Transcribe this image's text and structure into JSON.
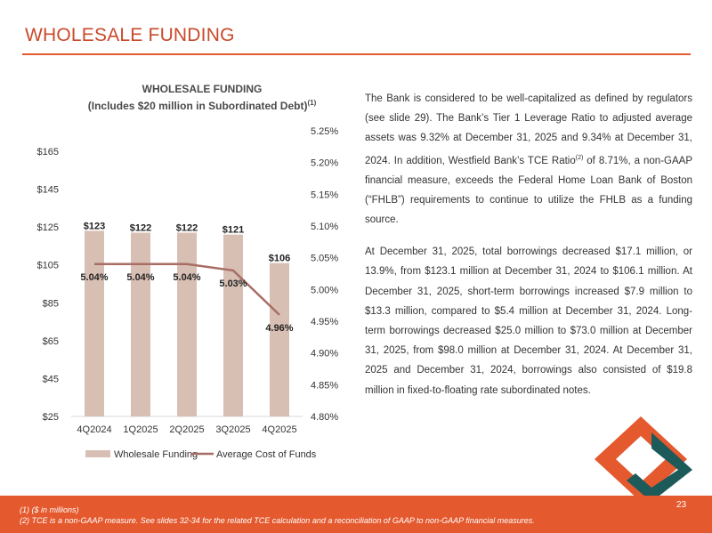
{
  "header": {
    "title": "WHOLESALE FUNDING"
  },
  "chart_data": {
    "type": "bar",
    "title": "WHOLESALE FUNDING",
    "subtitle": "(Includes $20 million in Subordinated Debt)",
    "subtitle_note": "(1)",
    "categories": [
      "4Q2024",
      "1Q2025",
      "2Q2025",
      "3Q2025",
      "4Q2025"
    ],
    "series": [
      {
        "name": "Wholesale Funding",
        "type": "bar",
        "axis": "left",
        "values": [
          123,
          122,
          122,
          121,
          106
        ],
        "labels": [
          "$123",
          "$122",
          "$122",
          "$121",
          "$106"
        ],
        "color": "#d8bfb4"
      },
      {
        "name": "Average Cost of Funds",
        "type": "line",
        "axis": "right",
        "values": [
          5.04,
          5.04,
          5.04,
          5.03,
          4.96
        ],
        "labels": [
          "5.04%",
          "5.04%",
          "5.04%",
          "5.03%",
          "4.96%"
        ],
        "color": "#a86e66"
      }
    ],
    "y_left": {
      "min": 25,
      "max": 165,
      "ticks": [
        "$25",
        "$45",
        "$65",
        "$85",
        "$105",
        "$125",
        "$145",
        "$165"
      ],
      "tick_values": [
        25,
        45,
        65,
        85,
        105,
        125,
        145,
        165
      ]
    },
    "y_right": {
      "min": 4.8,
      "max": 5.25,
      "ticks": [
        "4.80%",
        "4.85%",
        "4.90%",
        "4.95%",
        "5.00%",
        "5.05%",
        "5.10%",
        "5.15%",
        "5.20%",
        "5.25%"
      ],
      "tick_values": [
        4.8,
        4.85,
        4.9,
        4.95,
        5.0,
        5.05,
        5.1,
        5.15,
        5.2,
        5.25
      ]
    },
    "legend": {
      "position": "bottom",
      "items": [
        "Wholesale Funding",
        "Average Cost of Funds"
      ]
    },
    "grid": false
  },
  "body": {
    "para1_a": "The Bank is considered to be well-capitalized as defined by regulators (see slide 29). The Bank’s Tier 1 Leverage Ratio to adjusted average assets was 9.32% at December 31, 2025 and 9.34% at December 31, 2024. In addition, Westfield Bank’s TCE Ratio",
    "para1_sup": "(2)",
    "para1_b": " of 8.71%, a non-GAAP financial measure, exceeds the Federal Home Loan Bank of Boston (“FHLB”) requirements to continue to utilize the FHLB as a funding source.",
    "para2": "At December 31, 2025, total borrowings decreased $17.1 million, or 13.9%, from $123.1 million at December 31, 2024 to $106.1 million. At December 31, 2025, short-term borrowings increased $7.9 million to $13.3 million, compared to $5.4 million at December 31, 2024. Long-term borrowings decreased $25.0 million to $73.0 million at December 31, 2025, from $98.0 million at December 31, 2024. At December 31, 2025 and December 31, 2024, borrowings also consisted of $19.8 million in fixed-to-floating rate subordinated notes."
  },
  "footer": {
    "note1": "(1)   ($ in millions)",
    "note2": "(2)   TCE is a non-GAAP measure.  See slides 32-34 for the related TCE calculation and a reconciliation of GAAP to non-GAAP financial measures.",
    "page_number": "23"
  },
  "colors": {
    "accent": "#e4592e",
    "title": "#c9492a",
    "bar": "#d8bfb4",
    "line": "#a86e66",
    "logo_teal": "#1d5a5a"
  }
}
